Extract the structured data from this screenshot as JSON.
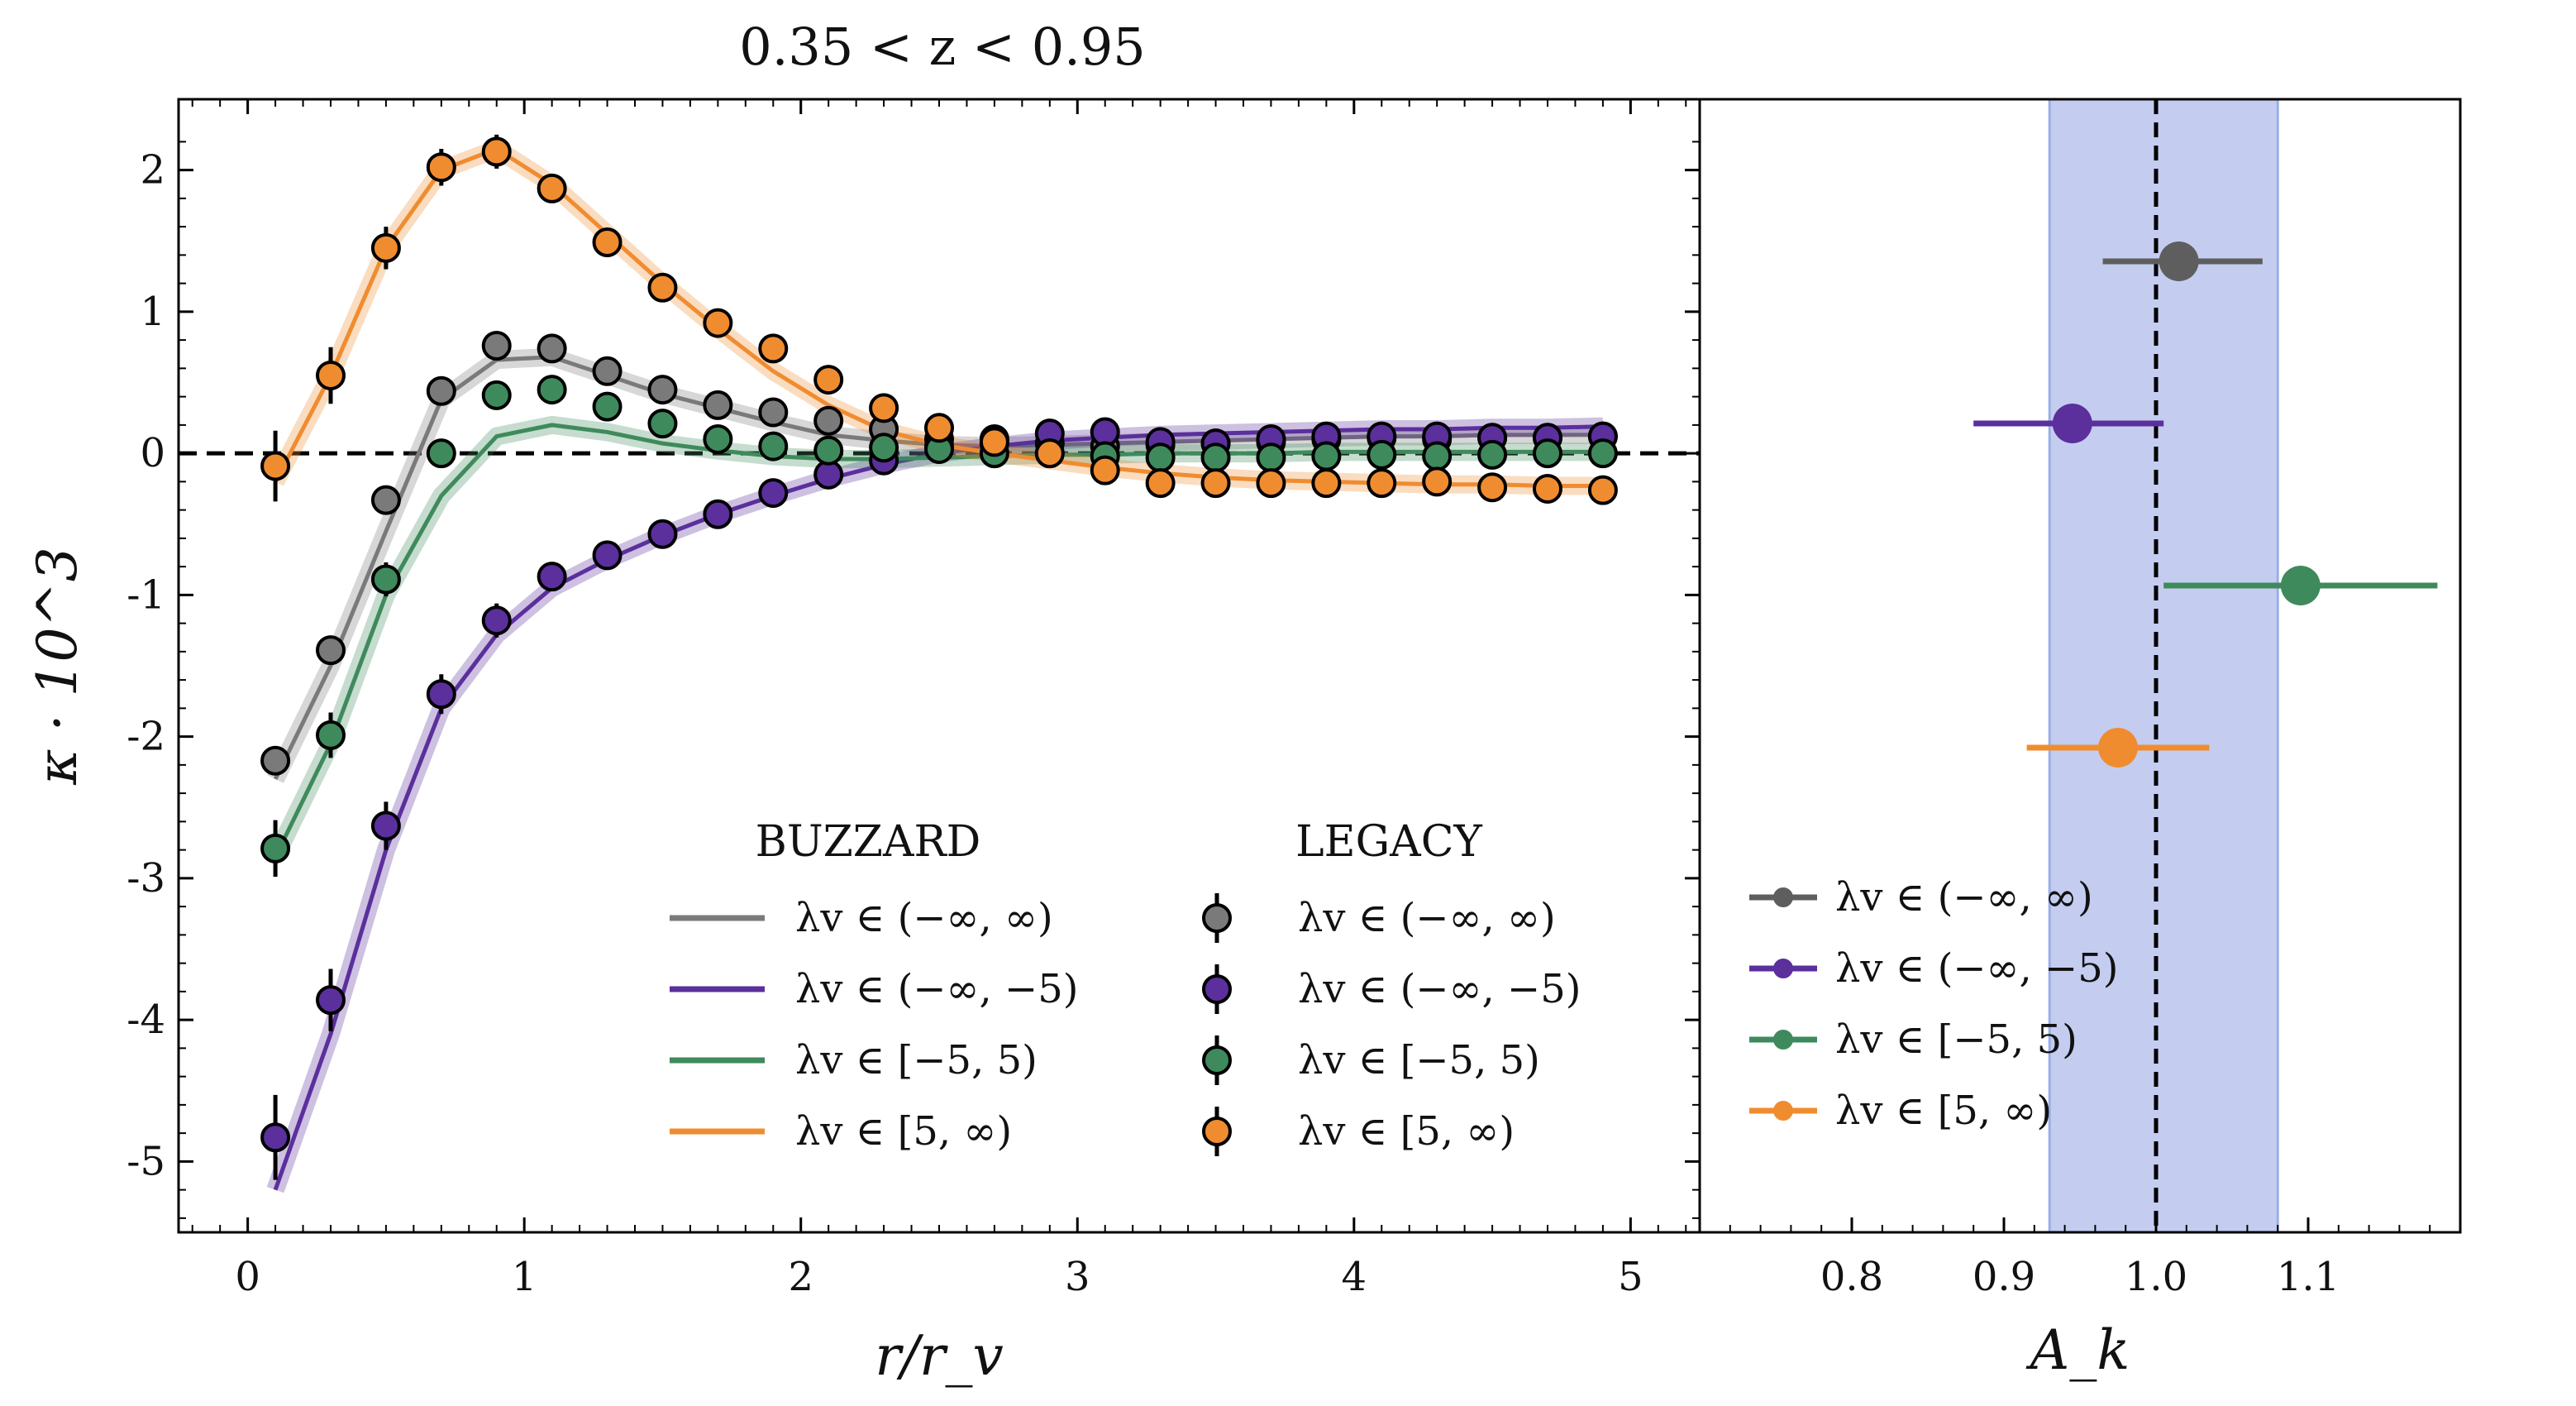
{
  "figure_title": "0.35 < z < 0.95",
  "chart_data": [
    {
      "type": "line+errorbar",
      "title": "0.35 < z < 0.95",
      "xlabel": "r/r_v",
      "ylabel": "κ · 10^3",
      "xlim": [
        -0.25,
        5.25
      ],
      "ylim": [
        -5.5,
        2.5
      ],
      "xticks": [
        "0",
        "1",
        "2",
        "3",
        "4",
        "5"
      ],
      "yticks": [
        "-5",
        "-4",
        "-3",
        "-2",
        "-1",
        "0",
        "1",
        "2"
      ],
      "reference_line_y": 0,
      "legend_titles": {
        "model": "BUZZARD",
        "data": "LEGACY"
      },
      "x": [
        0.1,
        0.3,
        0.5,
        0.7,
        0.9,
        1.1,
        1.3,
        1.5,
        1.7,
        1.9,
        2.1,
        2.3,
        2.5,
        2.7,
        2.9,
        3.1,
        3.3,
        3.5,
        3.7,
        3.9,
        4.1,
        4.3,
        4.5,
        4.7,
        4.9
      ],
      "series": [
        {
          "name": "λv ∈ (−∞, ∞)",
          "color": "#7a7a7a",
          "buzzard": [
            -2.3,
            -1.5,
            -0.55,
            0.38,
            0.66,
            0.68,
            0.55,
            0.42,
            0.32,
            0.22,
            0.13,
            0.09,
            0.06,
            0.05,
            0.06,
            0.07,
            0.08,
            0.09,
            0.1,
            0.11,
            0.12,
            0.12,
            0.13,
            0.13,
            0.13
          ],
          "legacy": [
            -2.17,
            -1.39,
            -0.33,
            0.44,
            0.76,
            0.74,
            0.58,
            0.45,
            0.34,
            0.29,
            0.23,
            0.17,
            0.1,
            0.07,
            0.07,
            0.05,
            0.06,
            0.07,
            0.08,
            0.1,
            0.11,
            0.1,
            0.11,
            0.11,
            0.12
          ],
          "legacy_err": [
            0.1,
            0.1,
            0.09,
            0.08,
            0.08,
            0.07,
            0.07,
            0.06,
            0.06,
            0.06,
            0.06,
            0.05,
            0.05,
            0.05,
            0.05,
            0.05,
            0.05,
            0.05,
            0.05,
            0.05,
            0.05,
            0.05,
            0.05,
            0.05,
            0.05
          ]
        },
        {
          "name": "λv ∈ (−∞, −5)",
          "color": "#5b2f9c",
          "buzzard": [
            -5.2,
            -4.1,
            -2.8,
            -1.8,
            -1.28,
            -0.95,
            -0.75,
            -0.58,
            -0.43,
            -0.3,
            -0.18,
            -0.08,
            0.0,
            0.05,
            0.09,
            0.11,
            0.13,
            0.14,
            0.15,
            0.16,
            0.17,
            0.17,
            0.18,
            0.18,
            0.19
          ],
          "legacy": [
            -4.83,
            -3.86,
            -2.63,
            -1.7,
            -1.18,
            -0.87,
            -0.72,
            -0.57,
            -0.43,
            -0.28,
            -0.15,
            -0.05,
            0.05,
            0.1,
            0.14,
            0.15,
            0.08,
            0.07,
            0.1,
            0.12,
            0.12,
            0.12,
            0.11,
            0.11,
            0.12
          ],
          "legacy_err": [
            0.3,
            0.22,
            0.17,
            0.14,
            0.12,
            0.1,
            0.09,
            0.08,
            0.07,
            0.07,
            0.06,
            0.06,
            0.06,
            0.06,
            0.06,
            0.06,
            0.06,
            0.06,
            0.06,
            0.06,
            0.06,
            0.06,
            0.06,
            0.06,
            0.06
          ]
        },
        {
          "name": "λv ∈ [−5, 5)",
          "color": "#3f8a5c",
          "buzzard": [
            -2.85,
            -2.05,
            -1.0,
            -0.3,
            0.12,
            0.2,
            0.15,
            0.07,
            0.02,
            -0.02,
            -0.04,
            -0.04,
            -0.03,
            -0.02,
            -0.01,
            -0.01,
            0.0,
            0.0,
            0.0,
            0.01,
            0.01,
            0.01,
            0.01,
            0.01,
            0.01
          ],
          "legacy": [
            -2.79,
            -1.99,
            -0.89,
            0.0,
            0.41,
            0.45,
            0.33,
            0.21,
            0.1,
            0.05,
            0.02,
            0.04,
            0.03,
            0.0,
            0.0,
            -0.02,
            -0.03,
            -0.03,
            -0.03,
            -0.02,
            -0.01,
            -0.02,
            -0.01,
            0.0,
            0.0
          ],
          "legacy_err": [
            0.2,
            0.16,
            0.12,
            0.1,
            0.08,
            0.07,
            0.06,
            0.06,
            0.05,
            0.05,
            0.05,
            0.05,
            0.05,
            0.05,
            0.05,
            0.05,
            0.05,
            0.05,
            0.05,
            0.05,
            0.05,
            0.05,
            0.05,
            0.05,
            0.05
          ]
        },
        {
          "name": "λv ∈ [5, ∞)",
          "color": "#f08c30",
          "buzzard": [
            -0.2,
            0.55,
            1.45,
            2.0,
            2.15,
            1.9,
            1.55,
            1.2,
            0.88,
            0.58,
            0.34,
            0.16,
            0.06,
            0.0,
            -0.05,
            -0.1,
            -0.14,
            -0.17,
            -0.19,
            -0.2,
            -0.21,
            -0.22,
            -0.22,
            -0.23,
            -0.23
          ],
          "legacy": [
            -0.09,
            0.55,
            1.45,
            2.02,
            2.13,
            1.87,
            1.49,
            1.17,
            0.92,
            0.74,
            0.52,
            0.32,
            0.18,
            0.08,
            0.0,
            -0.12,
            -0.21,
            -0.21,
            -0.21,
            -0.21,
            -0.21,
            -0.2,
            -0.24,
            -0.25,
            -0.26
          ],
          "legacy_err": [
            0.25,
            0.2,
            0.15,
            0.13,
            0.12,
            0.1,
            0.09,
            0.08,
            0.07,
            0.07,
            0.06,
            0.06,
            0.06,
            0.06,
            0.06,
            0.06,
            0.06,
            0.06,
            0.06,
            0.06,
            0.06,
            0.06,
            0.06,
            0.06,
            0.06
          ]
        }
      ]
    },
    {
      "type": "errorbar",
      "xlabel": "A_k",
      "xlim": [
        0.7,
        1.2
      ],
      "xticks": [
        "0.8",
        "0.9",
        "1.0",
        "1.1"
      ],
      "reference_line_x": 1.0,
      "band": {
        "low": 0.93,
        "high": 1.08,
        "color": "#c4cdf0"
      },
      "points": [
        {
          "name": "λv ∈ (−∞, ∞)",
          "color": "#5e5e5e",
          "value": 1.015,
          "low": 0.965,
          "high": 1.07
        },
        {
          "name": "λv ∈ (−∞, −5)",
          "color": "#5b2f9c",
          "value": 0.945,
          "low": 0.88,
          "high": 1.005
        },
        {
          "name": "λv ∈ [−5, 5)",
          "color": "#3f8a5c",
          "value": 1.095,
          "low": 1.005,
          "high": 1.185
        },
        {
          "name": "λv ∈ [5, ∞)",
          "color": "#f08c30",
          "value": 0.975,
          "low": 0.915,
          "high": 1.035
        }
      ]
    }
  ]
}
